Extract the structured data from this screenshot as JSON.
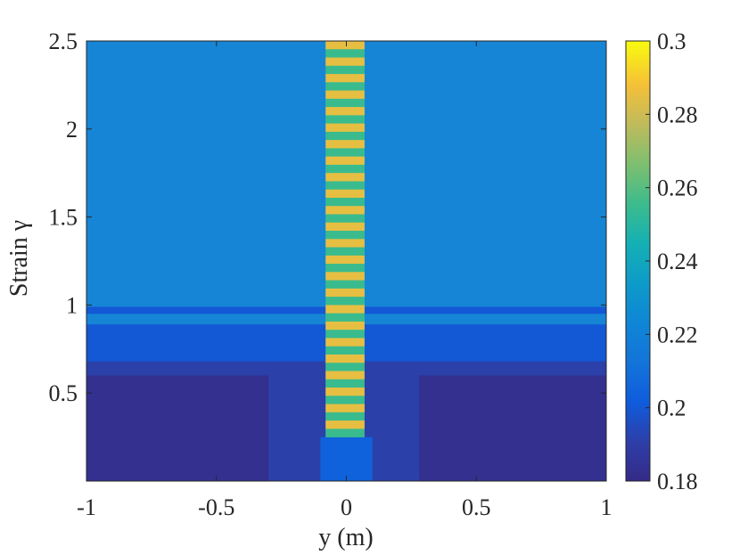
{
  "chart_data": {
    "type": "heatmap",
    "title": "",
    "xlabel": "y (m)",
    "ylabel": "Strain γ",
    "xlim": [
      -1,
      1
    ],
    "ylim": [
      0,
      2.5
    ],
    "x_ticks": [
      -1,
      -0.5,
      0,
      0.5,
      1
    ],
    "x_tick_labels": [
      "-1",
      "-0.5",
      "0",
      "0.5",
      "1"
    ],
    "y_ticks": [
      0.5,
      1,
      1.5,
      2,
      2.5
    ],
    "y_tick_labels": [
      "0.5",
      "1",
      "1.5",
      "2",
      "2.5"
    ],
    "colorbar": {
      "colormap": "parula",
      "range": [
        0.18,
        0.3
      ],
      "ticks": [
        0.18,
        0.2,
        0.22,
        0.24,
        0.26,
        0.28,
        0.3
      ],
      "tick_labels": [
        "0.18",
        "0.2",
        "0.22",
        "0.24",
        "0.26",
        "0.28",
        "0.3"
      ]
    },
    "background_value": 0.206,
    "regions": [
      {
        "name": "outer-lower-left",
        "value": 0.183,
        "x": [
          -1,
          -0.3
        ],
        "y": [
          0,
          0.6
        ]
      },
      {
        "name": "outer-lower-right",
        "value": 0.183,
        "x": [
          0.28,
          1
        ],
        "y": [
          0,
          0.6
        ]
      },
      {
        "name": "middle-band",
        "value": 0.191,
        "x": [
          -1,
          1
        ],
        "y": [
          0,
          0.68
        ]
      },
      {
        "name": "inner-band",
        "value": 0.2,
        "x": [
          -1,
          1
        ],
        "y": [
          0,
          0.89
        ]
      },
      {
        "name": "upper-thin-band",
        "value": 0.2,
        "x": [
          -1,
          1
        ],
        "y": [
          0.95,
          0.99
        ]
      },
      {
        "name": "shear-zone-column",
        "value": 0.204,
        "x": [
          -0.1,
          0.1
        ],
        "y": [
          0,
          0.25
        ]
      }
    ],
    "oscillating_band": {
      "x": [
        -0.08,
        0.07
      ],
      "y": [
        0.25,
        2.5
      ],
      "high_value": 0.285,
      "low_value": 0.255,
      "stripe_count": 48
    }
  }
}
